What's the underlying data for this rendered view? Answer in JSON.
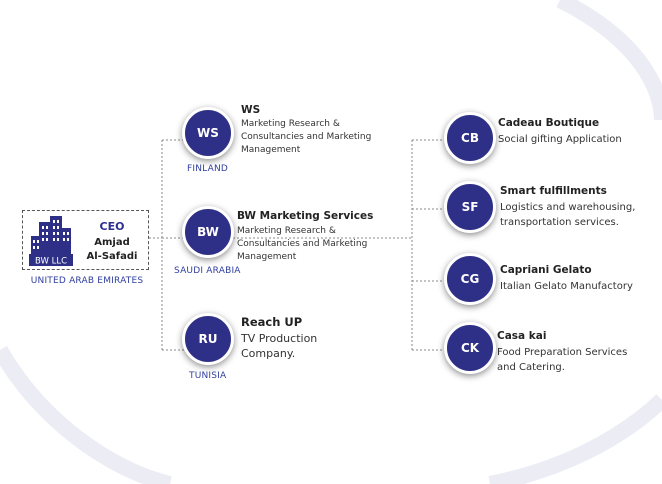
{
  "ceo": {
    "logo_text": "BW LLC",
    "title": "CEO",
    "name_line1": "Amjad",
    "name_line2": "Al-Safadi",
    "country": "UNITED ARAB EMIRATES"
  },
  "companies": [
    {
      "initials": "WS",
      "name": "WS",
      "desc_lines": [
        "Marketing Research &",
        "Consultancies and Marketing",
        "Management"
      ],
      "country": "FINLAND"
    },
    {
      "initials": "BW",
      "name": "BW Marketing Services",
      "desc_lines": [
        "Marketing Research &",
        "Consultancies and Marketing",
        "Management"
      ],
      "country": "SAUDI ARABIA"
    },
    {
      "initials": "RU",
      "name": "Reach UP",
      "desc_lines": [
        "TV Production",
        "Company."
      ],
      "country": "TUNISIA"
    }
  ],
  "subsidiaries": [
    {
      "initials": "CB",
      "name": "Cadeau Boutique",
      "desc_lines": [
        "Social gifting Application"
      ]
    },
    {
      "initials": "SF",
      "name": "Smart fulfillments",
      "desc_lines": [
        "Logistics and warehousing,",
        "transportation services."
      ]
    },
    {
      "initials": "CG",
      "name": "Capriani Gelato",
      "desc_lines": [
        "Italian Gelato Manufactory"
      ]
    },
    {
      "initials": "CK",
      "name": "Casa kai",
      "desc_lines": [
        "Food Preparation Services",
        "and Catering."
      ]
    }
  ],
  "colors": {
    "node": "#2e2f86",
    "country": "#2f3e9e",
    "arc": "#eeeef6"
  }
}
